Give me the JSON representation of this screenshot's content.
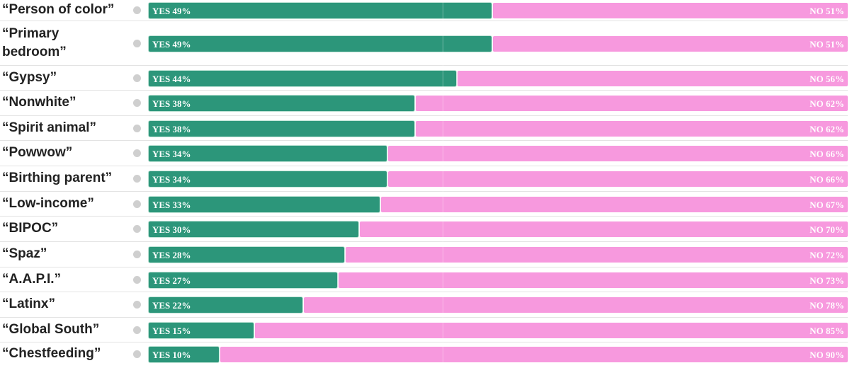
{
  "colors": {
    "yes": "#2c967a",
    "no": "#f799de",
    "dot": "#cfcfcf",
    "label": "#222222"
  },
  "chart_data": {
    "type": "bar",
    "stacked": true,
    "orientation": "horizontal",
    "categories": [
      "“Person of color”",
      "“Primary bedroom”",
      "“Gypsy”",
      "“Nonwhite”",
      "“Spirit animal”",
      "“Powwow”",
      "“Birthing parent”",
      "“Low-income”",
      "“BIPOC”",
      "“Spaz”",
      "“A.A.P.I.”",
      "“Latinx”",
      "“Global South”",
      "“Chestfeeding”"
    ],
    "series": [
      {
        "key": "yes",
        "values": [
          49,
          49,
          44,
          38,
          38,
          34,
          34,
          33,
          30,
          28,
          27,
          22,
          15,
          10
        ],
        "labels": [
          "YES 49%",
          "YES 49%",
          "YES 44%",
          "YES 38%",
          "YES 38%",
          "YES 34%",
          "YES 34%",
          "YES 33%",
          "YES 30%",
          "YES 28%",
          "YES 27%",
          "YES 22%",
          "YES 15%",
          "YES 10%"
        ]
      },
      {
        "key": "no",
        "values": [
          51,
          51,
          56,
          62,
          62,
          66,
          66,
          67,
          70,
          72,
          73,
          78,
          85,
          90
        ],
        "labels": [
          "NO 51%",
          "NO 51%",
          "NO 56%",
          "NO 62%",
          "NO 62%",
          "NO 66%",
          "NO 66%",
          "NO 67%",
          "NO 70%",
          "NO 72%",
          "NO 73%",
          "NO 78%",
          "NO 85%",
          "NO 90%"
        ]
      }
    ],
    "xlim": [
      0,
      100
    ],
    "legend": "none",
    "grid": false
  }
}
